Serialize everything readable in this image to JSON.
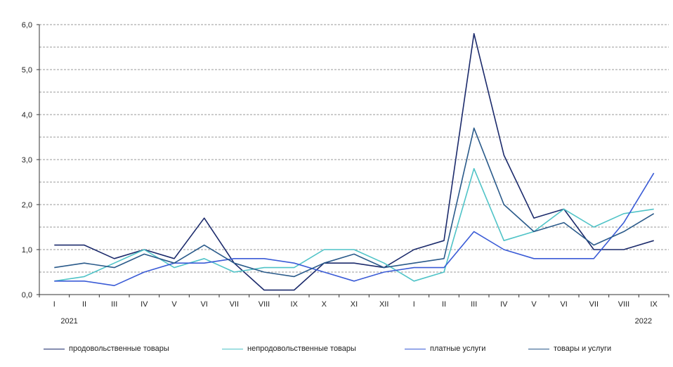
{
  "chart_data": {
    "type": "line",
    "title": "",
    "xlabel": "",
    "ylabel": "",
    "categories": [
      "I",
      "II",
      "III",
      "IV",
      "V",
      "VI",
      "VII",
      "VIII",
      "IX",
      "X",
      "XI",
      "XII",
      "I",
      "II",
      "III",
      "IV",
      "V",
      "VI",
      "VII",
      "VIII",
      "IX"
    ],
    "year_labels": [
      {
        "label": "2021",
        "category_index": 0
      },
      {
        "label": "2022",
        "category_index": 20
      }
    ],
    "yticks": [
      "0,0",
      "1,0",
      "2,0",
      "3,0",
      "4,0",
      "5,0",
      "6,0"
    ],
    "ylim": [
      0,
      6
    ],
    "grid": true,
    "legend_position": "bottom",
    "series": [
      {
        "name": "продовольственные товары",
        "color": "#1b2a6b",
        "values": [
          1.1,
          1.1,
          0.8,
          1.0,
          0.8,
          1.7,
          0.7,
          0.1,
          0.1,
          0.7,
          0.7,
          0.6,
          1.0,
          1.2,
          5.8,
          3.1,
          1.7,
          1.9,
          1.0,
          1.0,
          1.2
        ]
      },
      {
        "name": "непродовольственные товары",
        "color": "#4fc3c7",
        "values": [
          0.3,
          0.4,
          0.7,
          1.0,
          0.6,
          0.8,
          0.5,
          0.6,
          0.6,
          1.0,
          1.0,
          0.7,
          0.3,
          0.5,
          2.8,
          1.2,
          1.4,
          1.9,
          1.5,
          1.8,
          1.9
        ]
      },
      {
        "name": "платные услуги",
        "color": "#3a5bd6",
        "values": [
          0.3,
          0.3,
          0.2,
          0.5,
          0.7,
          0.7,
          0.8,
          0.8,
          0.7,
          0.5,
          0.3,
          0.5,
          0.6,
          0.6,
          1.4,
          1.0,
          0.8,
          0.8,
          0.8,
          1.6,
          2.7
        ]
      },
      {
        "name": "товары и услуги",
        "color": "#2a5a8a",
        "values": [
          0.6,
          0.7,
          0.6,
          0.9,
          0.7,
          1.1,
          0.7,
          0.5,
          0.4,
          0.7,
          0.9,
          0.6,
          0.7,
          0.8,
          3.7,
          2.0,
          1.4,
          1.6,
          1.1,
          1.4,
          1.8
        ]
      }
    ]
  }
}
